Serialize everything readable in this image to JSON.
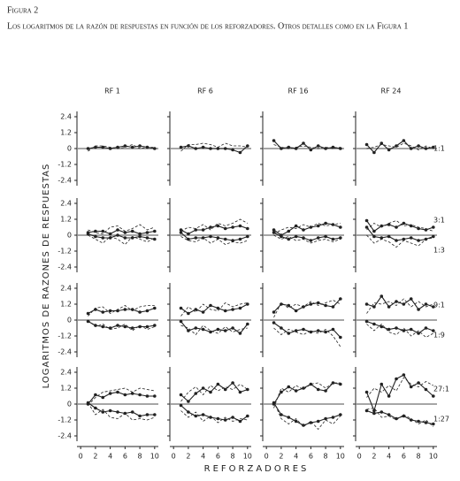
{
  "chart_data": {
    "type": "line",
    "figure_label": "Figura 2",
    "title": "Los logaritmos de la razón de respuestas en función de los reforzadores. Otros detalles como en la Figura 1",
    "ylabel": "LOGARITMOS DE RAZONES DE RESPUESTAS",
    "xlabel": "REFORZADORES",
    "columns": [
      "RF 1",
      "RF 6",
      "RF 16",
      "RF 24"
    ],
    "row_labels": [
      [
        "1:1"
      ],
      [
        "3:1",
        "1:3"
      ],
      [
        "9:1",
        "1:9"
      ],
      [
        "27:1",
        "1:27"
      ]
    ],
    "x": [
      1,
      2,
      3,
      4,
      5,
      6,
      7,
      8,
      9,
      10
    ],
    "xlim": [
      -0.5,
      10.5
    ],
    "xticks": [
      0,
      2,
      4,
      6,
      8,
      10
    ],
    "ylim": [
      -2.8,
      2.8
    ],
    "yticks": [
      2.4,
      1.2,
      0,
      -1.2,
      -2.4
    ],
    "color": "#222222",
    "panels": [
      [
        {
          "series": [
            {
              "style": "solid",
              "values": [
                0,
                0.1,
                0.1,
                0,
                0.1,
                0.2,
                0.1,
                0.2,
                0.1,
                0
              ]
            },
            {
              "style": "dashed",
              "values": [
                -0.2,
                0.2,
                0.2,
                0.1,
                0,
                0.1,
                0.3,
                0,
                0.1,
                0.1
              ]
            }
          ]
        },
        {
          "series": [
            {
              "style": "solid",
              "values": [
                0.1,
                0.2,
                0,
                0.1,
                0,
                0,
                0,
                -0.1,
                -0.3,
                0.2
              ]
            },
            {
              "style": "dashed",
              "values": [
                -0.2,
                0.3,
                0.3,
                0.4,
                0.3,
                0.1,
                0.4,
                0.2,
                0.2,
                0.1
              ]
            }
          ]
        },
        {
          "series": [
            {
              "style": "solid",
              "values": [
                0.6,
                0,
                0.1,
                0,
                0.4,
                -0.1,
                0.2,
                0,
                0.1,
                0
              ]
            },
            {
              "style": "dashed",
              "values": [
                0.3,
                0.1,
                0,
                0.1,
                0.2,
                0.1,
                0,
                0.1,
                0,
                0.1
              ]
            }
          ]
        },
        {
          "series": [
            {
              "style": "solid",
              "values": [
                0.3,
                -0.3,
                0.4,
                -0.1,
                0.2,
                0.6,
                0,
                0.2,
                0,
                0.1
              ]
            },
            {
              "style": "dashed",
              "values": [
                0,
                0.1,
                0.3,
                0.2,
                0.1,
                0.4,
                0.2,
                -0.1,
                0.2,
                0
              ]
            }
          ]
        }
      ],
      [
        {
          "series": [
            {
              "style": "solid",
              "values": [
                0.2,
                0.3,
                0.3,
                0.1,
                0.4,
                0.2,
                0.3,
                0.1,
                0.2,
                0.3
              ]
            },
            {
              "style": "solid",
              "values": [
                0.1,
                -0.1,
                -0.2,
                -0.2,
                0,
                -0.2,
                -0.2,
                -0.1,
                -0.2,
                -0.3
              ]
            },
            {
              "style": "dashed",
              "values": [
                0.4,
                0.2,
                0.1,
                0.6,
                0.7,
                0.3,
                0.5,
                0.8,
                0.4,
                0.6
              ]
            },
            {
              "style": "dashed",
              "values": [
                0,
                -0.3,
                -0.6,
                -0.1,
                -0.3,
                -0.7,
                -0.1,
                -0.3,
                -0.5,
                -0.2
              ]
            }
          ]
        },
        {
          "series": [
            {
              "style": "solid",
              "values": [
                0.4,
                0.1,
                0.4,
                0.4,
                0.6,
                0.7,
                0.5,
                0.6,
                0.7,
                0.5
              ]
            },
            {
              "style": "solid",
              "values": [
                0.2,
                -0.3,
                -0.2,
                -0.2,
                -0.1,
                -0.2,
                -0.3,
                -0.4,
                -0.3,
                -0.1
              ]
            },
            {
              "style": "dashed",
              "values": [
                0.3,
                0.6,
                0.5,
                0.8,
                0.4,
                0.9,
                0.7,
                0.9,
                1.2,
                0.9
              ]
            },
            {
              "style": "dashed",
              "values": [
                -0.1,
                -0.4,
                -0.5,
                -0.2,
                -0.6,
                -0.3,
                -0.7,
                -0.5,
                -0.6,
                -0.4
              ]
            }
          ]
        },
        {
          "series": [
            {
              "style": "solid",
              "values": [
                0.4,
                0,
                0.3,
                0.7,
                0.4,
                0.6,
                0.7,
                0.9,
                0.8,
                0.6
              ]
            },
            {
              "style": "solid",
              "values": [
                0.2,
                -0.1,
                -0.3,
                -0.1,
                -0.2,
                -0.4,
                -0.2,
                -0.1,
                -0.3,
                -0.2
              ]
            },
            {
              "style": "dashed",
              "values": [
                0.1,
                0.4,
                0.6,
                0.5,
                0.8,
                0.6,
                0.9,
                0.7,
                0.8,
                0.9
              ]
            },
            {
              "style": "dashed",
              "values": [
                0,
                -0.3,
                -0.1,
                -0.4,
                -0.3,
                -0.6,
                -0.4,
                -0.3,
                -0.5,
                -0.3
              ]
            }
          ]
        },
        {
          "series": [
            {
              "style": "solid",
              "values": [
                1.1,
                0.3,
                0.7,
                0.8,
                0.6,
                0.9,
                0.7,
                0.5,
                0.4,
                0.6
              ]
            },
            {
              "style": "solid",
              "values": [
                0.6,
                -0.1,
                -0.2,
                -0.1,
                -0.4,
                -0.3,
                -0.2,
                -0.4,
                -0.3,
                -0.1
              ]
            },
            {
              "style": "dashed",
              "values": [
                0.4,
                0.9,
                0.6,
                0.9,
                1.1,
                0.7,
                0.8,
                0.6,
                0.5,
                0.3
              ]
            },
            {
              "style": "dashed",
              "values": [
                0,
                -0.6,
                -0.3,
                -0.5,
                -0.9,
                -0.4,
                -0.6,
                -0.8,
                -0.3,
                -0.2
              ]
            }
          ]
        }
      ],
      [
        {
          "series": [
            {
              "style": "solid",
              "values": [
                0.5,
                0.8,
                0.6,
                0.7,
                0.7,
                0.8,
                0.8,
                0.6,
                0.7,
                0.9
              ]
            },
            {
              "style": "solid",
              "values": [
                -0.1,
                -0.4,
                -0.5,
                -0.6,
                -0.4,
                -0.5,
                -0.6,
                -0.5,
                -0.5,
                -0.4
              ]
            },
            {
              "style": "dashed",
              "values": [
                0.3,
                0.9,
                1.0,
                0.5,
                0.8,
                1.1,
                0.7,
                1.0,
                1.1,
                1.1
              ]
            },
            {
              "style": "dashed",
              "values": [
                0,
                -0.5,
                -0.3,
                -0.7,
                -0.6,
                -0.3,
                -0.8,
                -0.4,
                -0.7,
                -0.5
              ]
            }
          ]
        },
        {
          "series": [
            {
              "style": "solid",
              "values": [
                0.9,
                0.5,
                0.8,
                0.6,
                1.1,
                0.9,
                0.7,
                0.8,
                0.9,
                1.2
              ]
            },
            {
              "style": "solid",
              "values": [
                -0.1,
                -0.8,
                -0.6,
                -0.7,
                -0.9,
                -0.7,
                -0.8,
                -0.6,
                -1.0,
                -0.3
              ]
            },
            {
              "style": "dashed",
              "values": [
                0.3,
                1.0,
                0.6,
                1.2,
                0.8,
                0.7,
                1.3,
                1.0,
                1.2,
                1.3
              ]
            },
            {
              "style": "dashed",
              "values": [
                -0.4,
                -0.6,
                -1.1,
                -0.4,
                -0.8,
                -1.0,
                -0.5,
                -0.9,
                -0.7,
                -0.6
              ]
            }
          ]
        },
        {
          "series": [
            {
              "style": "solid",
              "values": [
                0.6,
                1.2,
                1.1,
                0.7,
                1.0,
                1.2,
                1.3,
                1.1,
                1.0,
                1.6
              ]
            },
            {
              "style": "solid",
              "values": [
                -0.2,
                -0.6,
                -1.0,
                -0.8,
                -0.7,
                -0.9,
                -0.8,
                -0.9,
                -0.7,
                -1.3
              ]
            },
            {
              "style": "dashed",
              "values": [
                0.2,
                1.3,
                0.9,
                1.2,
                1.0,
                1.4,
                1.1,
                1.3,
                1.5,
                1.2
              ]
            },
            {
              "style": "dashed",
              "values": [
                -0.6,
                -1.1,
                -0.7,
                -0.9,
                -1.1,
                -0.8,
                -1.0,
                -0.7,
                -1.2,
                -2.0
              ]
            }
          ]
        },
        {
          "series": [
            {
              "style": "solid",
              "values": [
                1.2,
                1.0,
                1.8,
                1.0,
                1.4,
                1.2,
                1.6,
                0.8,
                1.2,
                1.0
              ]
            },
            {
              "style": "solid",
              "values": [
                -0.1,
                -0.3,
                -0.5,
                -0.7,
                -0.6,
                -0.8,
                -0.7,
                -1.0,
                -0.6,
                -0.8
              ]
            },
            {
              "style": "dashed",
              "values": [
                0.5,
                1.3,
                1.2,
                1.4,
                1.1,
                1.6,
                1.0,
                1.4,
                1.0,
                1.2
              ]
            },
            {
              "style": "dashed",
              "values": [
                -0.3,
                -0.8,
                -0.3,
                -0.9,
                -1.1,
                -0.6,
                -1.2,
                -0.8,
                -1.3,
                -1.0
              ]
            }
          ]
        }
      ],
      [
        {
          "series": [
            {
              "style": "solid",
              "values": [
                0,
                0.7,
                0.5,
                0.8,
                0.9,
                0.7,
                0.8,
                0.7,
                0.6,
                0.6
              ]
            },
            {
              "style": "solid",
              "values": [
                0.1,
                -0.3,
                -0.6,
                -0.5,
                -0.6,
                -0.7,
                -0.6,
                -0.9,
                -0.8,
                -0.8
              ]
            },
            {
              "style": "dashed",
              "values": [
                -0.1,
                0.5,
                0.9,
                1.0,
                1.1,
                1.2,
                0.9,
                1.2,
                1.1,
                1.0
              ]
            },
            {
              "style": "dashed",
              "values": [
                0.1,
                -0.8,
                -0.4,
                -1.0,
                -1.1,
                -0.7,
                -1.2,
                -1.1,
                -1.2,
                -1.0
              ]
            }
          ]
        },
        {
          "series": [
            {
              "style": "solid",
              "values": [
                0.7,
                0.2,
                0.8,
                1.2,
                0.9,
                1.5,
                1.1,
                1.6,
                0.9,
                1.1
              ]
            },
            {
              "style": "solid",
              "values": [
                -0.1,
                -0.6,
                -0.9,
                -0.8,
                -1.0,
                -1.1,
                -1.2,
                -1.0,
                -1.3,
                -0.9
              ]
            },
            {
              "style": "dashed",
              "values": [
                0.2,
                0.9,
                1.3,
                0.7,
                1.4,
                1.0,
                1.3,
                1.1,
                1.5,
                1.1
              ]
            },
            {
              "style": "dashed",
              "values": [
                -0.5,
                -1.0,
                -0.6,
                -1.3,
                -0.9,
                -1.4,
                -1.0,
                -1.3,
                -1.1,
                -1.2
              ]
            }
          ]
        },
        {
          "series": [
            {
              "style": "solid",
              "values": [
                0,
                0.9,
                1.3,
                1.0,
                1.2,
                1.5,
                1.1,
                1.0,
                1.6,
                1.5
              ]
            },
            {
              "style": "solid",
              "values": [
                0.1,
                -0.8,
                -1.0,
                -1.3,
                -1.6,
                -1.4,
                -1.3,
                -1.1,
                -1.0,
                -0.8
              ]
            },
            {
              "style": "dashed",
              "values": [
                -0.3,
                1.2,
                0.9,
                1.4,
                1.1,
                1.5,
                1.6,
                1.2,
                1.6,
                1.6
              ]
            },
            {
              "style": "dashed",
              "values": [
                0.2,
                -1.1,
                -1.5,
                -1.1,
                -1.7,
                -1.3,
                -1.9,
                -1.2,
                -1.5,
                -0.9
              ]
            }
          ]
        },
        {
          "series": [
            {
              "style": "solid",
              "values": [
                0.9,
                -0.5,
                1.5,
                0.6,
                1.9,
                2.2,
                1.3,
                1.6,
                1.1,
                0.6
              ]
            },
            {
              "style": "solid",
              "values": [
                -0.5,
                -0.7,
                -0.6,
                -0.8,
                -1.1,
                -0.9,
                -1.2,
                -1.3,
                -1.4,
                -1.5
              ]
            },
            {
              "style": "dashed",
              "values": [
                0.5,
                1.2,
                0.9,
                1.4,
                1.0,
                2.0,
                1.5,
                1.3,
                1.7,
                1.4
              ]
            },
            {
              "style": "dashed",
              "values": [
                -0.4,
                -0.3,
                -1.0,
                -0.9,
                -1.2,
                -0.8,
                -1.1,
                -1.5,
                -1.2,
                -1.7
              ]
            }
          ]
        }
      ]
    ]
  }
}
